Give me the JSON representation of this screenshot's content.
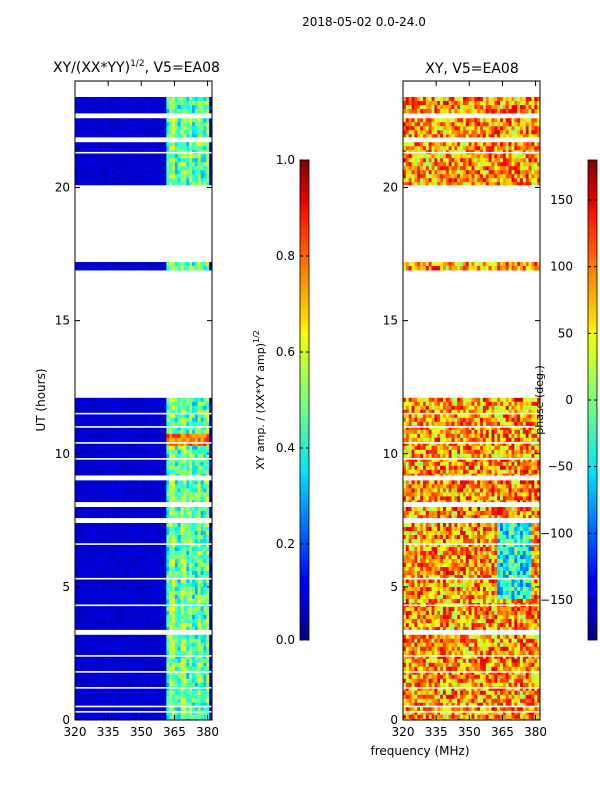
{
  "figure": {
    "suptitle": "2018-05-02 0.0-24.0",
    "xlabel": "frequency (MHz)"
  },
  "chart_data": [
    {
      "type": "heatmap",
      "title_main": "XY/(XX*YY)",
      "title_exp": "1/2",
      "title_tail": ", V5=EA08",
      "xlabel": "",
      "ylabel": "UT (hours)",
      "xlim": [
        320,
        382
      ],
      "ylim": [
        0,
        24
      ],
      "xticks": [
        320,
        335,
        350,
        365,
        380
      ],
      "yticks": [
        0,
        5,
        10,
        15,
        20
      ],
      "colorbar": {
        "label_main": "XY amp. / (XX*YY amp)",
        "label_exp": "1/2",
        "range": [
          0.0,
          1.0
        ],
        "ticks": [
          "0.0",
          "0.2",
          "0.4",
          "0.6",
          "0.8",
          "1.0"
        ],
        "colormap": "jet"
      },
      "data_blocks_ut": [
        [
          0.0,
          3.2
        ],
        [
          3.4,
          7.4
        ],
        [
          7.6,
          8.0
        ],
        [
          8.2,
          9.0
        ],
        [
          9.2,
          12.1
        ],
        [
          16.9,
          17.2
        ],
        [
          20.1,
          21.7
        ],
        [
          21.9,
          22.6
        ],
        [
          22.8,
          23.4
        ]
      ],
      "band_mhz": [
        361.5,
        381.0
      ],
      "hot_channels_mhz": [
        364.0,
        369.0,
        372.5,
        376.5,
        380.0
      ],
      "ut_gaps": [
        0.3,
        0.5,
        1.2,
        1.8,
        2.4,
        4.3,
        5.3,
        6.6,
        9.8,
        10.4,
        11.0,
        11.5,
        21.3
      ],
      "peak_ut": [
        10.3,
        10.7
      ],
      "background_amp": 0.08,
      "band_amp": 0.42,
      "peak_amp": 0.78
    },
    {
      "type": "heatmap",
      "title": "XY, V5=EA08",
      "xlabel": "",
      "ylabel": "",
      "xlim": [
        320,
        382
      ],
      "ylim": [
        0,
        24
      ],
      "xticks": [
        320,
        335,
        350,
        365,
        380
      ],
      "yticks": [
        0,
        5,
        10,
        15,
        20
      ],
      "colorbar": {
        "label": "phase (deg.)",
        "range": [
          -180,
          180
        ],
        "ticks": [
          "−150",
          "−100",
          "−50",
          "0",
          "50",
          "100",
          "150"
        ],
        "colormap": "jet"
      },
      "data_blocks_ut": [
        [
          0.0,
          3.2
        ],
        [
          3.4,
          7.4
        ],
        [
          7.6,
          8.0
        ],
        [
          8.2,
          9.0
        ],
        [
          9.2,
          12.1
        ],
        [
          16.9,
          17.2
        ],
        [
          20.1,
          21.7
        ],
        [
          21.9,
          22.6
        ],
        [
          22.8,
          23.4
        ]
      ],
      "ut_gaps": [
        0.3,
        0.5,
        1.2,
        1.8,
        2.4,
        4.3,
        5.3,
        6.6,
        9.8,
        10.4,
        11.0,
        11.5,
        21.3
      ],
      "phase_mean_deg": 80,
      "phase_spread_deg": 70,
      "cool_feature_ut": [
        4.5,
        7.4
      ],
      "cool_feature_mhz": [
        362,
        378
      ]
    }
  ]
}
